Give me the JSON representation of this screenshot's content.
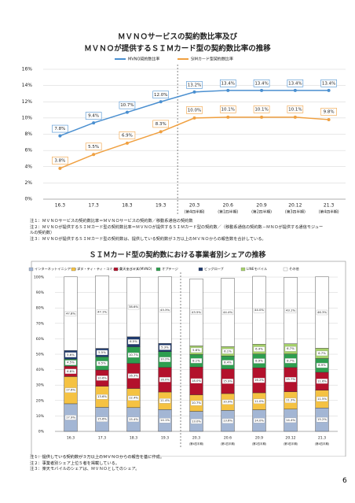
{
  "chart_data": [
    {
      "type": "line",
      "title": [
        "ＭＶＮＯサービスの契約数比率及び",
        "ＭＶＮＯが提供するＳＩＭカード型の契約数比率の推移"
      ],
      "categories": [
        "16.3",
        "17.3",
        "18.3",
        "19.3",
        "20.3",
        "20.6",
        "20.9",
        "20.12",
        "21.3"
      ],
      "category_notes": [
        null,
        null,
        null,
        null,
        "(第4四半期)",
        "(第1四半期)",
        "(第2四半期)",
        "(第3四半期)",
        "(第4四半期)"
      ],
      "series": [
        {
          "name": "MVNO契約数比率",
          "color": "#4a8fd0",
          "values": [
            7.8,
            9.4,
            10.7,
            12.0,
            13.2,
            13.4,
            13.4,
            13.4,
            13.4
          ],
          "value_labels": [
            "7.8%",
            "9.4%",
            "10.7%",
            "12.0%",
            "13.2%",
            "13.4%",
            "13.4%",
            "13.4%",
            "13.4%"
          ]
        },
        {
          "name": "SIMカード型契約数比率",
          "color": "#f0a040",
          "values": [
            3.8,
            5.5,
            6.9,
            8.3,
            10.0,
            10.1,
            10.1,
            10.1,
            9.8
          ],
          "value_labels": [
            "3.8%",
            "5.5%",
            "6.9%",
            "8.3%",
            "10.0%",
            "10.1%",
            "10.1%",
            "10.1%",
            "9.8%"
          ]
        }
      ],
      "ylim": [
        0,
        16
      ],
      "yticks": [
        {
          "value": 0,
          "label": "0%"
        },
        {
          "value": 2,
          "label": "2%"
        },
        {
          "value": 4,
          "label": "4%"
        },
        {
          "value": 6,
          "label": "6%"
        },
        {
          "value": 8,
          "label": "8%"
        },
        {
          "value": 10,
          "label": "10%"
        },
        {
          "value": 12,
          "label": "12%"
        },
        {
          "value": 14,
          "label": "14%"
        },
        {
          "value": 16,
          "label": "16%"
        }
      ],
      "grid": true
    },
    {
      "type": "stacked_bar",
      "title": [
        "ＳＩＭカード型の契約数における事業者別シェアの推移"
      ],
      "categories": [
        "16.3",
        "17.3",
        "18.3",
        "19.3",
        "20.3",
        "20.6",
        "20.9",
        "20.12",
        "21.3"
      ],
      "category_notes": [
        null,
        null,
        null,
        null,
        "(第4四半期)",
        "(第1四半期)",
        "(第2四半期)",
        "(第3四半期)",
        "(第4四半期)"
      ],
      "series": [
        {
          "name": "インターネットイニシアティブ",
          "color": "#a3b6d4",
          "values": [
            17.9,
            15.6,
            15.4,
            14.1,
            13.0,
            13.6,
            14.0,
            14.4,
            15.2
          ],
          "value_labels": [
            "17.9%",
            "15.6%",
            "15.4%",
            "14.1%",
            "13.0%",
            "13.6%",
            "14.0%",
            "14.4%",
            "15.2%"
          ]
        },
        {
          "name": "エヌ・ティ・ティ・コミュニケーションズ",
          "color": "#f5c242",
          "values": [
            17.6,
            13.6,
            12.4,
            11.4,
            10.7,
            10.9,
            11.0,
            11.3,
            11.5
          ],
          "value_labels": [
            "17.6%",
            "13.6%",
            "12.4%",
            "11.4%",
            "10.7%",
            "10.9%",
            "11.0%",
            "11.3%",
            "11.5%"
          ]
        },
        {
          "name": "楽天モバイル(MVNO)",
          "color": "#b3112c",
          "values": [
            6.8,
            10.6,
            16.3,
            16.0,
            18.0,
            15.9,
            16.2,
            15.7,
            11.6
          ],
          "value_labels": [
            "6.8%",
            "10.6%",
            "16.3%",
            "16.0%",
            "18.0%",
            "15.9%",
            "16.2%",
            "15.7%",
            "11.6%"
          ]
        },
        {
          "name": "オプテージ",
          "color": "#2e9e4f",
          "values": [
            4.5,
            8.5,
            10.7,
            10.2,
            8.1,
            8.4,
            8.9,
            8.7,
            8.9
          ],
          "value_labels": [
            "4.5%",
            "8.5%",
            "10.7%",
            "10.2%",
            "8.1%",
            "8.4%",
            "8.9%",
            "8.7%",
            "8.9%"
          ]
        },
        {
          "name": "ビッグローブ",
          "color": "#1f3a6e",
          "values": [
            5.6,
            5.5,
            6.5,
            5.3,
            null,
            null,
            null,
            null,
            null
          ],
          "value_labels": [
            "5.6%",
            "5.5%",
            "6.5%",
            "5.3%",
            null,
            null,
            null,
            null,
            null
          ]
        },
        {
          "name": "LINEモバイル",
          "color": "#a5d06a",
          "values": [
            null,
            null,
            null,
            null,
            5.6,
            6.1,
            6.4,
            6.7,
            6.7
          ],
          "value_labels": [
            null,
            null,
            null,
            null,
            "5.6%",
            "6.1%",
            "6.4%",
            "6.7%",
            "6.7%"
          ]
        },
        {
          "name": "その他",
          "color": "#ffffff",
          "values": [
            47.8,
            47.1,
            38.6,
            43.3,
            43.5,
            44.4,
            44.0,
            43.1,
            46.3
          ],
          "value_labels": [
            "47.8%",
            "47.1%",
            "38.6%",
            "43.3%",
            "43.5%",
            "44.4%",
            "44.0%",
            "43.1%",
            "46.3%"
          ]
        }
      ],
      "ylim": [
        0,
        100
      ],
      "yticks": [
        {
          "value": 0,
          "label": "0%"
        },
        {
          "value": 10,
          "label": "10%"
        },
        {
          "value": 20,
          "label": "20%"
        },
        {
          "value": 30,
          "label": "30%"
        },
        {
          "value": 40,
          "label": "40%"
        },
        {
          "value": 50,
          "label": "50%"
        },
        {
          "value": 60,
          "label": "60%"
        },
        {
          "value": 70,
          "label": "70%"
        },
        {
          "value": 80,
          "label": "80%"
        },
        {
          "value": 90,
          "label": "90%"
        },
        {
          "value": 100,
          "label": "100%"
        }
      ],
      "grid": true
    }
  ],
  "notes1": [
    "注１：ＭＶＮＯサービスの契約数比率＝ＭＶＮＯサービスの契約数／移動系通信の契約数",
    "注２：ＭＶＮＯが提供するＳＩＭカード型の契約数比率＝ＭＶＮＯが提供するＳＩＭカード型の契約数／（移動系通信の契約数－ＭＮＯが提供する通信モジュールの契約数）",
    "注３：ＭＶＮＯが提供するＳＩＭカード型の契約数は、提供している契約数が３万以上のＭＶＮＯからの報告数を合計している。"
  ],
  "notes2": [
    "注１：提供している契約数が３万以上のＭＶＮＯからの報告を基に作成。",
    "注２：事業者別シェア上位５者を掲載している。",
    "注３：楽天モバイルのシェアは、ＭＶＮＯとしてのシェア。"
  ],
  "page_number": "6"
}
